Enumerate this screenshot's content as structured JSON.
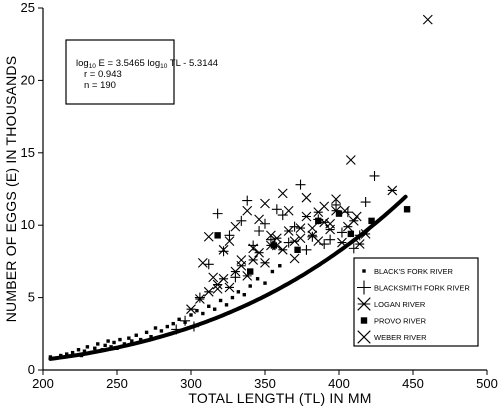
{
  "chart_data": {
    "type": "scatter",
    "xlabel": "TOTAL LENGTH (TL) IN MM",
    "ylabel": "NUMBER  OF EGGS (E) IN THOUSANDS",
    "xlim": [
      200,
      500
    ],
    "ylim": [
      0,
      25
    ],
    "x_ticks": [
      200,
      250,
      300,
      350,
      400,
      450,
      500
    ],
    "y_ticks": [
      0,
      5,
      10,
      15,
      20,
      25
    ],
    "legend_position": "bottom-right",
    "annotation": {
      "eq_prefix": "log",
      "eq_sub1": "10",
      "eq_mid": " E = 3.5465 log",
      "eq_sub2": "10",
      "eq_suffix": " TL - 5.3144",
      "r": "r = 0.943",
      "n": "n = 190"
    },
    "fit": {
      "slope": 3.5465,
      "intercept": -5.3144,
      "x_range": [
        205,
        445
      ]
    },
    "series": [
      {
        "name": "BLACK'S FORK RIVER",
        "marker": "small-square",
        "points": [
          [
            205,
            0.9
          ],
          [
            212,
            1.0
          ],
          [
            216,
            1.1
          ],
          [
            220,
            1.2
          ],
          [
            224,
            1.4
          ],
          [
            226,
            1.0
          ],
          [
            228,
            1.3
          ],
          [
            230,
            1.6
          ],
          [
            232,
            1.2
          ],
          [
            235,
            1.5
          ],
          [
            237,
            1.8
          ],
          [
            240,
            1.4
          ],
          [
            242,
            1.7
          ],
          [
            244,
            2.0
          ],
          [
            246,
            1.6
          ],
          [
            248,
            1.9
          ],
          [
            250,
            1.5
          ],
          [
            252,
            2.1
          ],
          [
            255,
            1.8
          ],
          [
            258,
            2.2
          ],
          [
            260,
            2.0
          ],
          [
            263,
            2.4
          ],
          [
            266,
            2.1
          ],
          [
            270,
            2.6
          ],
          [
            273,
            2.3
          ],
          [
            276,
            2.9
          ],
          [
            280,
            2.7
          ],
          [
            284,
            3.0
          ],
          [
            288,
            3.2
          ],
          [
            292,
            3.5
          ],
          [
            296,
            3.3
          ],
          [
            300,
            3.8
          ],
          [
            304,
            4.1
          ],
          [
            308,
            3.9
          ],
          [
            312,
            4.4
          ],
          [
            316,
            4.2
          ],
          [
            320,
            4.8
          ],
          [
            324,
            4.5
          ],
          [
            328,
            5.0
          ],
          [
            332,
            5.4
          ],
          [
            336,
            5.2
          ],
          [
            340,
            5.8
          ],
          [
            345,
            6.3
          ],
          [
            350,
            6.0
          ],
          [
            355,
            6.8
          ],
          [
            360,
            7.2
          ]
        ]
      },
      {
        "name": "BLACKSMITH FORK RIVER",
        "marker": "plus",
        "points": [
          [
            290,
            2.8
          ],
          [
            296,
            3.4
          ],
          [
            302,
            3.0
          ],
          [
            306,
            5.0
          ],
          [
            312,
            7.3
          ],
          [
            318,
            10.8
          ],
          [
            322,
            8.2
          ],
          [
            326,
            9.3
          ],
          [
            330,
            6.4
          ],
          [
            334,
            10.3
          ],
          [
            338,
            11.7
          ],
          [
            342,
            8.6
          ],
          [
            346,
            9.6
          ],
          [
            350,
            10.1
          ],
          [
            354,
            9.0
          ],
          [
            358,
            11.1
          ],
          [
            362,
            10.7
          ],
          [
            366,
            8.8
          ],
          [
            370,
            9.9
          ],
          [
            374,
            12.8
          ],
          [
            378,
            8.3
          ],
          [
            382,
            9.2
          ],
          [
            386,
            10.4
          ],
          [
            390,
            8.7
          ],
          [
            394,
            9.0
          ],
          [
            398,
            11.4
          ],
          [
            402,
            9.5
          ],
          [
            406,
            10.9
          ],
          [
            410,
            8.4
          ],
          [
            414,
            9.3
          ],
          [
            418,
            11.6
          ],
          [
            424,
            13.4
          ]
        ]
      },
      {
        "name": "LOGAN RIVER",
        "marker": "star",
        "points": [
          [
            300,
            4.2
          ],
          [
            306,
            4.9
          ],
          [
            312,
            5.4
          ],
          [
            318,
            5.9
          ],
          [
            322,
            6.3
          ],
          [
            326,
            5.7
          ],
          [
            330,
            6.8
          ],
          [
            334,
            7.2
          ],
          [
            338,
            6.5
          ],
          [
            342,
            7.6
          ],
          [
            346,
            8.1
          ],
          [
            350,
            7.4
          ],
          [
            354,
            8.6
          ],
          [
            358,
            9.1
          ],
          [
            362,
            8.3
          ],
          [
            366,
            9.6
          ],
          [
            370,
            8.9
          ],
          [
            374,
            9.8
          ],
          [
            378,
            10.6
          ],
          [
            382,
            9.3
          ],
          [
            386,
            10.9
          ],
          [
            390,
            10.2
          ],
          [
            394,
            9.7
          ],
          [
            398,
            11.0
          ],
          [
            402,
            8.8
          ],
          [
            406,
            9.9
          ],
          [
            410,
            10.3
          ],
          [
            414,
            8.7
          ],
          [
            418,
            9.4
          ],
          [
            436,
            12.4
          ]
        ]
      },
      {
        "name": "PROVO RIVER",
        "marker": "filled-square",
        "points": [
          [
            318,
            9.3
          ],
          [
            340,
            6.8
          ],
          [
            356,
            8.6
          ],
          [
            372,
            8.3
          ],
          [
            386,
            10.3
          ],
          [
            400,
            10.8
          ],
          [
            408,
            9.4
          ],
          [
            422,
            10.3
          ],
          [
            446,
            11.1
          ]
        ]
      },
      {
        "name": "WEBER RIVER",
        "marker": "x",
        "points": [
          [
            308,
            7.4
          ],
          [
            312,
            9.2
          ],
          [
            315,
            6.4
          ],
          [
            318,
            5.6
          ],
          [
            322,
            8.3
          ],
          [
            326,
            8.9
          ],
          [
            330,
            9.9
          ],
          [
            334,
            7.6
          ],
          [
            338,
            11.0
          ],
          [
            342,
            8.4
          ],
          [
            346,
            10.4
          ],
          [
            350,
            11.5
          ],
          [
            354,
            9.3
          ],
          [
            358,
            8.6
          ],
          [
            362,
            12.2
          ],
          [
            366,
            11.0
          ],
          [
            370,
            7.7
          ],
          [
            374,
            9.1
          ],
          [
            378,
            11.9
          ],
          [
            382,
            9.8
          ],
          [
            386,
            8.9
          ],
          [
            390,
            11.3
          ],
          [
            394,
            10.1
          ],
          [
            398,
            11.8
          ],
          [
            404,
            11.0
          ],
          [
            408,
            14.5
          ],
          [
            412,
            10.6
          ],
          [
            460,
            24.2
          ]
        ]
      }
    ]
  }
}
